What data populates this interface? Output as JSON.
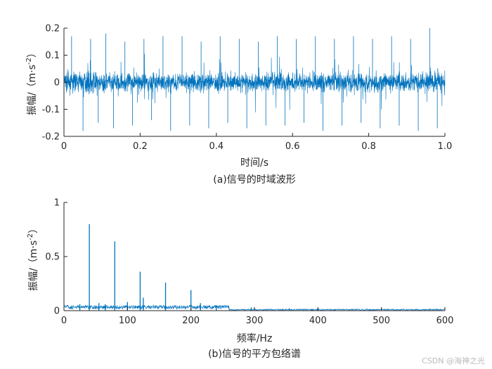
{
  "colors": {
    "series": "#0072bd",
    "axis": "#262626",
    "background": "#ffffff"
  },
  "chart_data": [
    {
      "type": "line",
      "xlabel": "时间/s",
      "ylabel_prefix": "振幅/（m·s",
      "ylabel_exp": "-2",
      "ylabel_suffix": "）",
      "caption": "(a)信号的时域波形",
      "xlim": [
        0,
        1.0
      ],
      "ylim": [
        -0.2,
        0.2
      ],
      "xticks": [
        0,
        0.2,
        0.4,
        0.6,
        0.8,
        1.0
      ],
      "xtick_labels": [
        "0",
        "0.2",
        "0.4",
        "0.6",
        "0.8",
        "1.0"
      ],
      "yticks": [
        -0.2,
        -0.1,
        0,
        0.1,
        0.2
      ],
      "ytick_labels": [
        "-0.2",
        "-0.1",
        "0",
        "0.1",
        "0.2"
      ],
      "peaks": [
        [
          0.02,
          0.17
        ],
        [
          0.05,
          -0.18
        ],
        [
          0.07,
          0.16
        ],
        [
          0.09,
          -0.15
        ],
        [
          0.11,
          0.18
        ],
        [
          0.13,
          -0.17
        ],
        [
          0.16,
          0.15
        ],
        [
          0.18,
          -0.16
        ],
        [
          0.21,
          0.16
        ],
        [
          0.23,
          -0.14
        ],
        [
          0.26,
          0.17
        ],
        [
          0.28,
          -0.18
        ],
        [
          0.31,
          0.17
        ],
        [
          0.33,
          -0.16
        ],
        [
          0.36,
          0.15
        ],
        [
          0.38,
          -0.17
        ],
        [
          0.41,
          0.17
        ],
        [
          0.43,
          -0.15
        ],
        [
          0.46,
          0.16
        ],
        [
          0.48,
          -0.17
        ],
        [
          0.51,
          0.15
        ],
        [
          0.53,
          -0.16
        ],
        [
          0.56,
          0.17
        ],
        [
          0.58,
          -0.16
        ],
        [
          0.61,
          0.16
        ],
        [
          0.63,
          -0.15
        ],
        [
          0.66,
          0.17
        ],
        [
          0.68,
          -0.18
        ],
        [
          0.71,
          0.16
        ],
        [
          0.73,
          -0.16
        ],
        [
          0.76,
          0.17
        ],
        [
          0.78,
          -0.15
        ],
        [
          0.81,
          0.16
        ],
        [
          0.83,
          -0.17
        ],
        [
          0.86,
          0.17
        ],
        [
          0.88,
          -0.16
        ],
        [
          0.91,
          0.16
        ],
        [
          0.93,
          -0.18
        ],
        [
          0.96,
          0.2
        ],
        [
          0.98,
          -0.17
        ]
      ]
    },
    {
      "type": "line",
      "xlabel": "频率/Hz",
      "ylabel_prefix": "振幅/（m·s",
      "ylabel_exp": "-2",
      "ylabel_suffix": "）",
      "caption": "(b)信号的平方包络谱",
      "xlim": [
        0,
        600
      ],
      "ylim": [
        0,
        1
      ],
      "xticks": [
        0,
        100,
        200,
        300,
        400,
        500,
        600
      ],
      "xtick_labels": [
        "0",
        "100",
        "200",
        "300",
        "400",
        "500",
        "600"
      ],
      "yticks": [
        0,
        0.5,
        1
      ],
      "ytick_labels": [
        "0",
        "0.5",
        "1"
      ],
      "peaks": [
        [
          40,
          0.8
        ],
        [
          80,
          0.64
        ],
        [
          120,
          0.36
        ],
        [
          160,
          0.26
        ],
        [
          200,
          0.19
        ],
        [
          215,
          0.07
        ],
        [
          125,
          0.12
        ],
        [
          100,
          0.08
        ],
        [
          55,
          0.07
        ],
        [
          65,
          0.06
        ],
        [
          25,
          0.06
        ],
        [
          240,
          0.05
        ],
        [
          295,
          0.03
        ],
        [
          355,
          0.02
        ],
        [
          400,
          0.02
        ],
        [
          500,
          0.02
        ]
      ]
    }
  ],
  "watermark": "CSDN @海神之光"
}
